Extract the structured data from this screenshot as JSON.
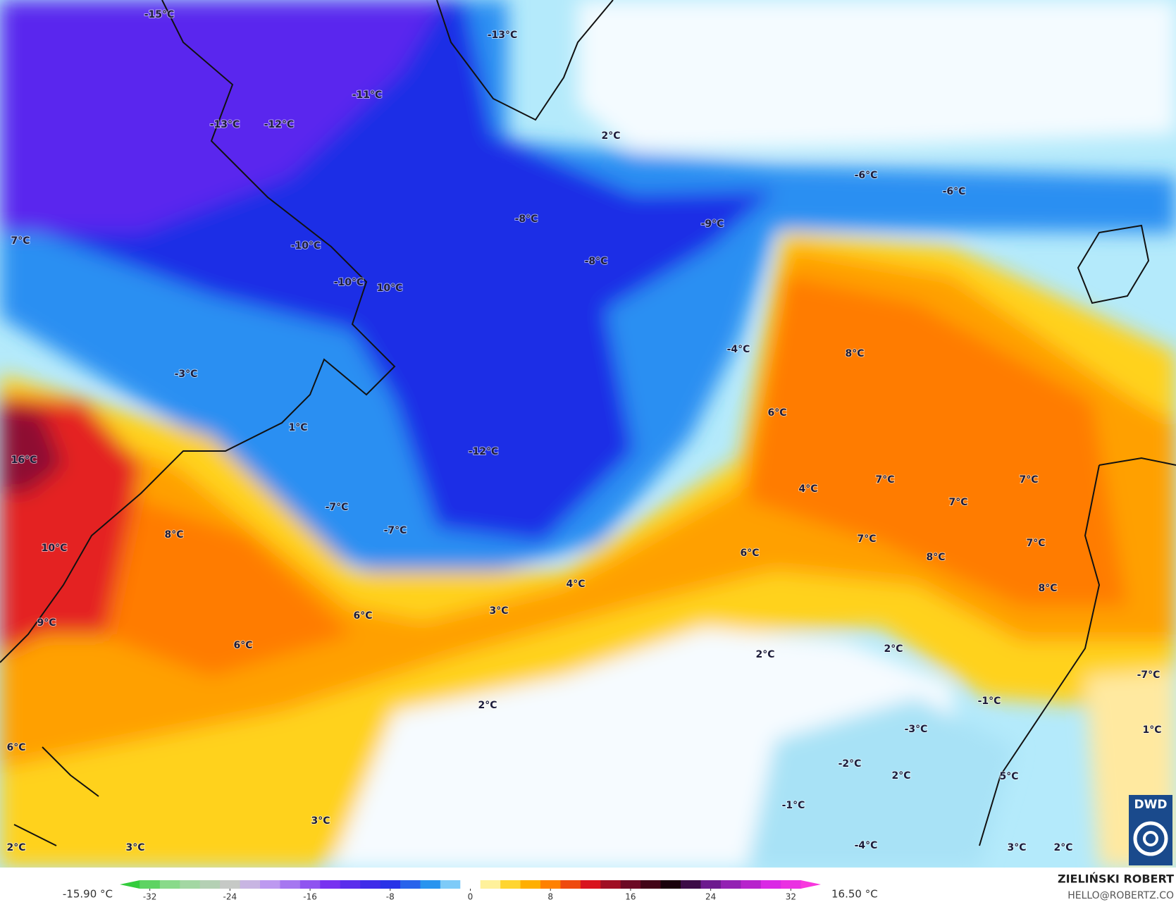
{
  "map": {
    "labels": [
      "-15°C",
      "-13°C",
      "-11°C",
      "-13°C",
      "-12°C",
      "2°C",
      "-6°C",
      "-6°C",
      "-8°C",
      "-9°C",
      "7°C",
      "-10°C",
      "-8°C",
      "-10°C",
      "10°C",
      "-4°C",
      "8°C",
      "-3°C",
      "6°C",
      "1°C",
      "-12°C",
      "16°C",
      "7°C",
      "7°C",
      "4°C",
      "7°C",
      "-7°C",
      "-7°C",
      "8°C",
      "7°C",
      "7°C",
      "10°C",
      "6°C",
      "8°C",
      "4°C",
      "8°C",
      "3°C",
      "6°C",
      "9°C",
      "6°C",
      "2°C",
      "2°C",
      "-7°C",
      "2°C",
      "-1°C",
      "-3°C",
      "1°C",
      "6°C",
      "-2°C",
      "2°C",
      "5°C",
      "-1°C",
      "3°C",
      "-4°C",
      "3°C",
      "2°C",
      "3°C",
      "2°C"
    ]
  },
  "colorbar": {
    "min_label": "-15.90 °C",
    "max_label": "16.50 °C",
    "lim": [
      -35,
      35
    ],
    "ticks": [
      -32,
      -24,
      -16,
      -8,
      0,
      8,
      16,
      24,
      32
    ]
  },
  "credit": {
    "name": "ZIELIŃSKI ROBERT",
    "email": "HELLO@ROBERTZ.CO"
  },
  "logo": "DWD"
}
